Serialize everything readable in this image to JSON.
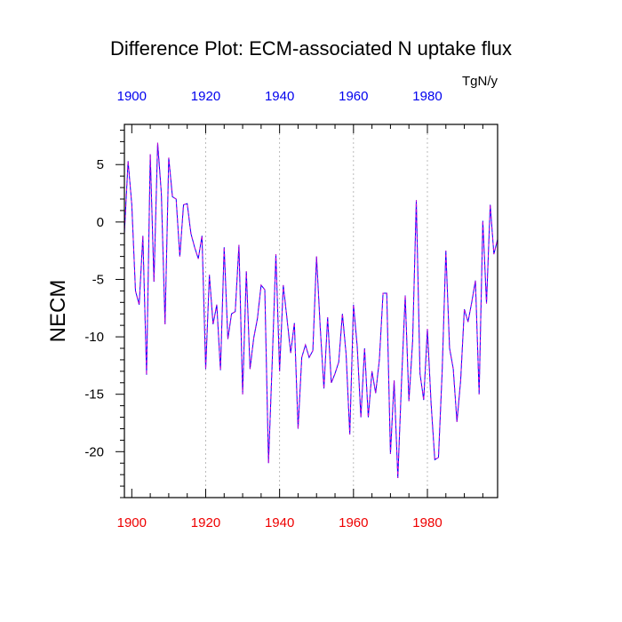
{
  "chart_data": {
    "type": "line",
    "title": "Difference Plot: ECM-associated N uptake flux",
    "units": "TgN/y",
    "ylabel": "NECM",
    "xlabel": "",
    "xlim": [
      1898,
      1999
    ],
    "ylim": [
      -24,
      8.5
    ],
    "x_ticks": [
      1900,
      1920,
      1940,
      1960,
      1980
    ],
    "y_ticks": [
      5,
      0,
      -5,
      -10,
      -15,
      -20
    ],
    "gridlines_x": [
      1920,
      1940,
      1960,
      1980
    ],
    "colors": {
      "top_axis_labels": "#0000ee",
      "bottom_axis_labels": "#ee0000",
      "series_a": "#0000ff",
      "series_b": "#cc00cc",
      "grid": "#aaaaaa",
      "frame": "#000000"
    },
    "series": [
      {
        "name": "NECM",
        "x": [
          1898,
          1899,
          1900,
          1901,
          1902,
          1903,
          1904,
          1905,
          1906,
          1907,
          1908,
          1909,
          1910,
          1911,
          1912,
          1913,
          1914,
          1915,
          1916,
          1917,
          1918,
          1919,
          1920,
          1921,
          1922,
          1923,
          1924,
          1925,
          1926,
          1927,
          1928,
          1929,
          1930,
          1931,
          1932,
          1933,
          1934,
          1935,
          1936,
          1937,
          1938,
          1939,
          1940,
          1941,
          1942,
          1943,
          1944,
          1945,
          1946,
          1947,
          1948,
          1949,
          1950,
          1951,
          1952,
          1953,
          1954,
          1955,
          1956,
          1957,
          1958,
          1959,
          1960,
          1961,
          1962,
          1963,
          1964,
          1965,
          1966,
          1967,
          1968,
          1969,
          1970,
          1971,
          1972,
          1973,
          1974,
          1975,
          1976,
          1977,
          1978,
          1979,
          1980,
          1981,
          1982,
          1983,
          1984,
          1985,
          1986,
          1987,
          1988,
          1989,
          1990,
          1991,
          1992,
          1993,
          1994,
          1995,
          1996,
          1997,
          1998,
          1999
        ],
        "y": [
          -1,
          5.3,
          1.5,
          -6,
          -7.2,
          -1.2,
          -13.3,
          5.9,
          -5.2,
          6.9,
          2.5,
          -8.9,
          5.6,
          2.2,
          2,
          -3,
          1.5,
          1.6,
          -1,
          -2.2,
          -3.2,
          -1.2,
          -12.8,
          -4.6,
          -8.9,
          -7.2,
          -12.9,
          -2.2,
          -10.2,
          -8,
          -7.8,
          -2,
          -15,
          -4.3,
          -12.8,
          -10.1,
          -8.4,
          -5.5,
          -5.9,
          -21,
          -12.2,
          -2.8,
          -13,
          -5.5,
          -8.4,
          -11.4,
          -8.8,
          -18,
          -11.8,
          -10.7,
          -11.8,
          -11.2,
          -3,
          -9.2,
          -14.5,
          -8.3,
          -14,
          -13.2,
          -12.2,
          -8,
          -11.5,
          -18.5,
          -7.2,
          -10.8,
          -17,
          -11,
          -17,
          -13,
          -14.9,
          -12,
          -6.2,
          -6.2,
          -20.2,
          -13.8,
          -22.3,
          -13.9,
          -6.4,
          -15.6,
          -10.4,
          1.9,
          -13.2,
          -15.5,
          -9.3,
          -15.8,
          -20.7,
          -20.5,
          -13,
          -2.5,
          -11,
          -12.8,
          -17.4,
          -13.8,
          -7.6,
          -8.7,
          -7,
          -5.1,
          -15,
          0.1,
          -7.1,
          1.5,
          -2.8,
          -1.5
        ]
      }
    ]
  }
}
